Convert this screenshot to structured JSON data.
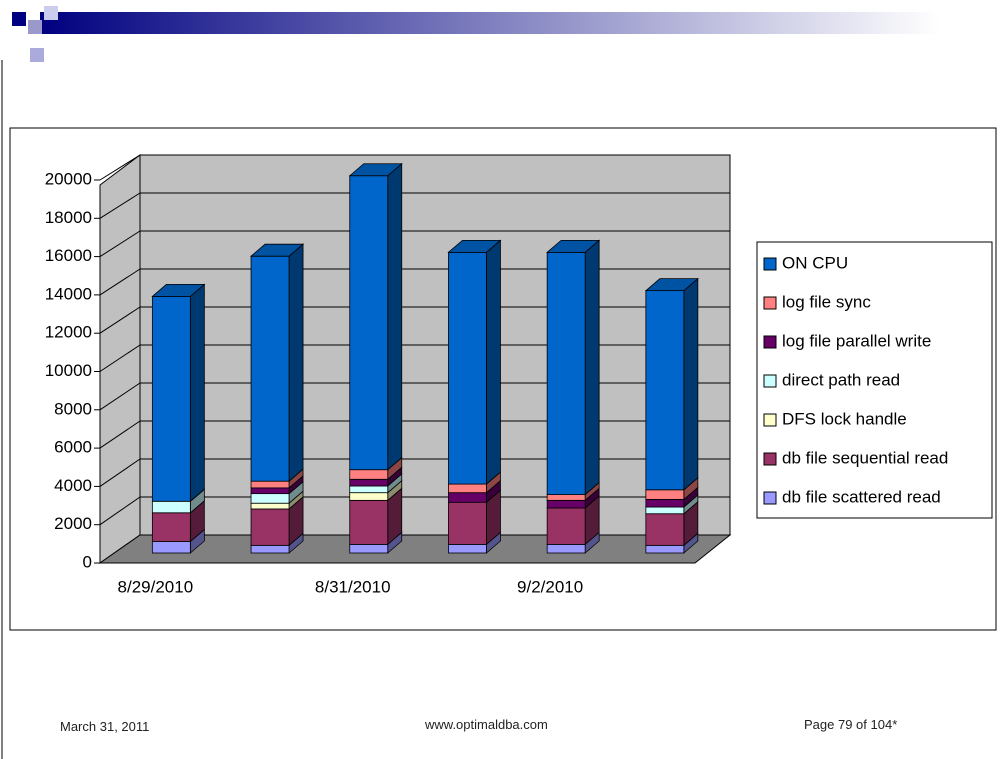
{
  "chart_data": {
    "type": "bar",
    "stacked": true,
    "categories": [
      "8/29/2010",
      null,
      "8/31/2010",
      null,
      "9/2/2010",
      null
    ],
    "series": [
      {
        "name": "db file scattered read",
        "color": "#9999ff",
        "values": [
          600,
          400,
          450,
          450,
          450,
          400
        ]
      },
      {
        "name": "db file sequential read",
        "color": "#993366",
        "values": [
          1500,
          1900,
          2300,
          2200,
          1900,
          1650
        ]
      },
      {
        "name": "DFS lock handle",
        "color": "#ffffcc",
        "values": [
          0,
          300,
          400,
          0,
          0,
          0
        ]
      },
      {
        "name": "direct path read",
        "color": "#ccffff",
        "values": [
          600,
          500,
          350,
          0,
          0,
          350
        ]
      },
      {
        "name": "log file parallel write",
        "color": "#660066",
        "values": [
          0,
          300,
          350,
          500,
          400,
          400
        ]
      },
      {
        "name": "log file sync",
        "color": "#ff8080",
        "values": [
          0,
          350,
          500,
          450,
          300,
          500
        ]
      },
      {
        "name": "ON CPU",
        "color": "#0066cc",
        "values": [
          10700,
          11750,
          15350,
          12100,
          12650,
          10400
        ]
      }
    ],
    "ylim": [
      0,
      20000
    ],
    "yticks": [
      0,
      2000,
      4000,
      6000,
      8000,
      10000,
      12000,
      14000,
      16000,
      18000,
      20000
    ],
    "grid": true,
    "legend": "right"
  },
  "footer": {
    "date": "March 31, 2011",
    "site": "www.optimaldba.com",
    "page": "Page 79 of 104*"
  }
}
